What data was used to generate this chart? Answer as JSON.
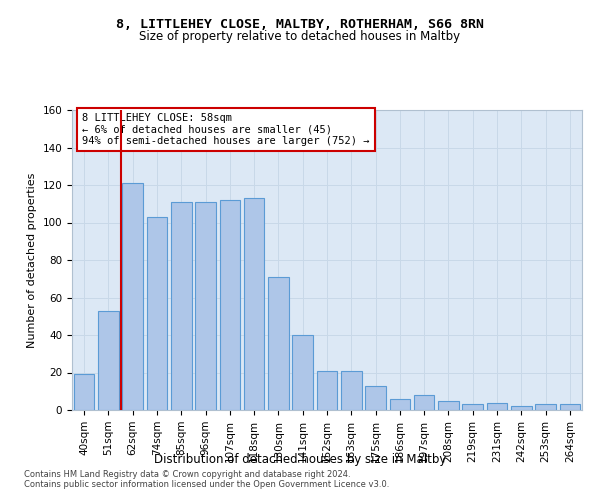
{
  "title": "8, LITTLEHEY CLOSE, MALTBY, ROTHERHAM, S66 8RN",
  "subtitle": "Size of property relative to detached houses in Maltby",
  "xlabel": "Distribution of detached houses by size in Maltby",
  "ylabel": "Number of detached properties",
  "categories": [
    "40sqm",
    "51sqm",
    "62sqm",
    "74sqm",
    "85sqm",
    "96sqm",
    "107sqm",
    "118sqm",
    "130sqm",
    "141sqm",
    "152sqm",
    "163sqm",
    "175sqm",
    "186sqm",
    "197sqm",
    "208sqm",
    "219sqm",
    "231sqm",
    "242sqm",
    "253sqm",
    "264sqm"
  ],
  "values": [
    19,
    53,
    121,
    103,
    111,
    111,
    112,
    113,
    71,
    40,
    21,
    21,
    13,
    6,
    8,
    5,
    3,
    4,
    2,
    3,
    3
  ],
  "bar_color": "#aec6e8",
  "bar_edge_color": "#5b9bd5",
  "vline_x_pos": 1.5,
  "vline_color": "#cc0000",
  "annotation_text": "8 LITTLEHEY CLOSE: 58sqm\n← 6% of detached houses are smaller (45)\n94% of semi-detached houses are larger (752) →",
  "annotation_box_color": "#ffffff",
  "annotation_box_edge": "#cc0000",
  "ylim": [
    0,
    160
  ],
  "yticks": [
    0,
    20,
    40,
    60,
    80,
    100,
    120,
    140,
    160
  ],
  "footer1": "Contains HM Land Registry data © Crown copyright and database right 2024.",
  "footer2": "Contains public sector information licensed under the Open Government Licence v3.0.",
  "grid_color": "#c8d8e8",
  "bg_color": "#dce8f5",
  "title_fontsize": 9.5,
  "subtitle_fontsize": 8.5,
  "xlabel_fontsize": 8.5,
  "ylabel_fontsize": 8,
  "tick_fontsize": 7.5,
  "annotation_fontsize": 7.5
}
